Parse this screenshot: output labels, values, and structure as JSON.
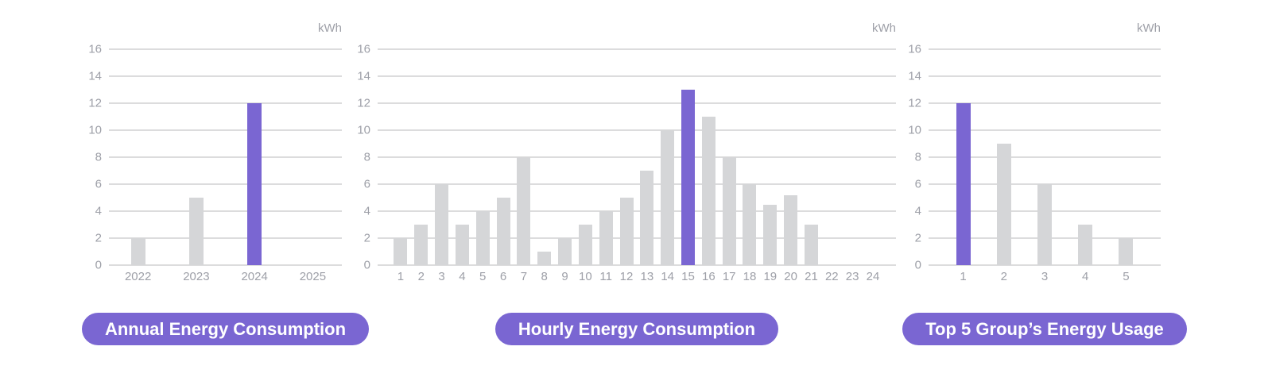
{
  "colors": {
    "accent_purple": "#7a66d2",
    "bar_gray": "#d5d6d8",
    "gridline_gray": "#dcdcdd",
    "axis_text_gray": "#9ea0a8",
    "button_text": "#ffffff",
    "background": "#ffffff"
  },
  "chart_data": [
    {
      "type": "bar",
      "title": "Annual Energy Consumption",
      "unit": "kWh",
      "categories": [
        "2022",
        "2023",
        "2024",
        "2025"
      ],
      "values": [
        2,
        5,
        12,
        0
      ],
      "highlight_category": "2024",
      "highlight_index": 2,
      "ylim": [
        0,
        16
      ],
      "ytick_step": 2,
      "grid": "horizontal",
      "legend": "none"
    },
    {
      "type": "bar",
      "title": "Hourly Energy Consumption",
      "unit": "kWh",
      "categories": [
        "1",
        "2",
        "3",
        "4",
        "5",
        "6",
        "7",
        "8",
        "9",
        "10",
        "11",
        "12",
        "13",
        "14",
        "15",
        "16",
        "17",
        "18",
        "19",
        "20",
        "21",
        "22",
        "23",
        "24"
      ],
      "values": [
        2,
        3,
        6,
        3,
        4,
        5,
        8,
        1,
        2,
        3,
        4,
        5,
        7,
        10,
        13,
        11,
        8,
        6,
        4.5,
        5.2,
        3,
        0,
        0,
        0
      ],
      "highlight_category": "15",
      "highlight_index": 14,
      "ylim": [
        0,
        16
      ],
      "ytick_step": 2,
      "grid": "horizontal",
      "legend": "none"
    },
    {
      "type": "bar",
      "title": "Top 5 Group’s Energy Usage",
      "unit": "kWh",
      "categories": [
        "1",
        "2",
        "3",
        "4",
        "5"
      ],
      "values": [
        12,
        9,
        6,
        3,
        2
      ],
      "highlight_category": "1",
      "highlight_index": 0,
      "ylim": [
        0,
        16
      ],
      "ytick_step": 2,
      "grid": "horizontal",
      "legend": "none"
    }
  ]
}
